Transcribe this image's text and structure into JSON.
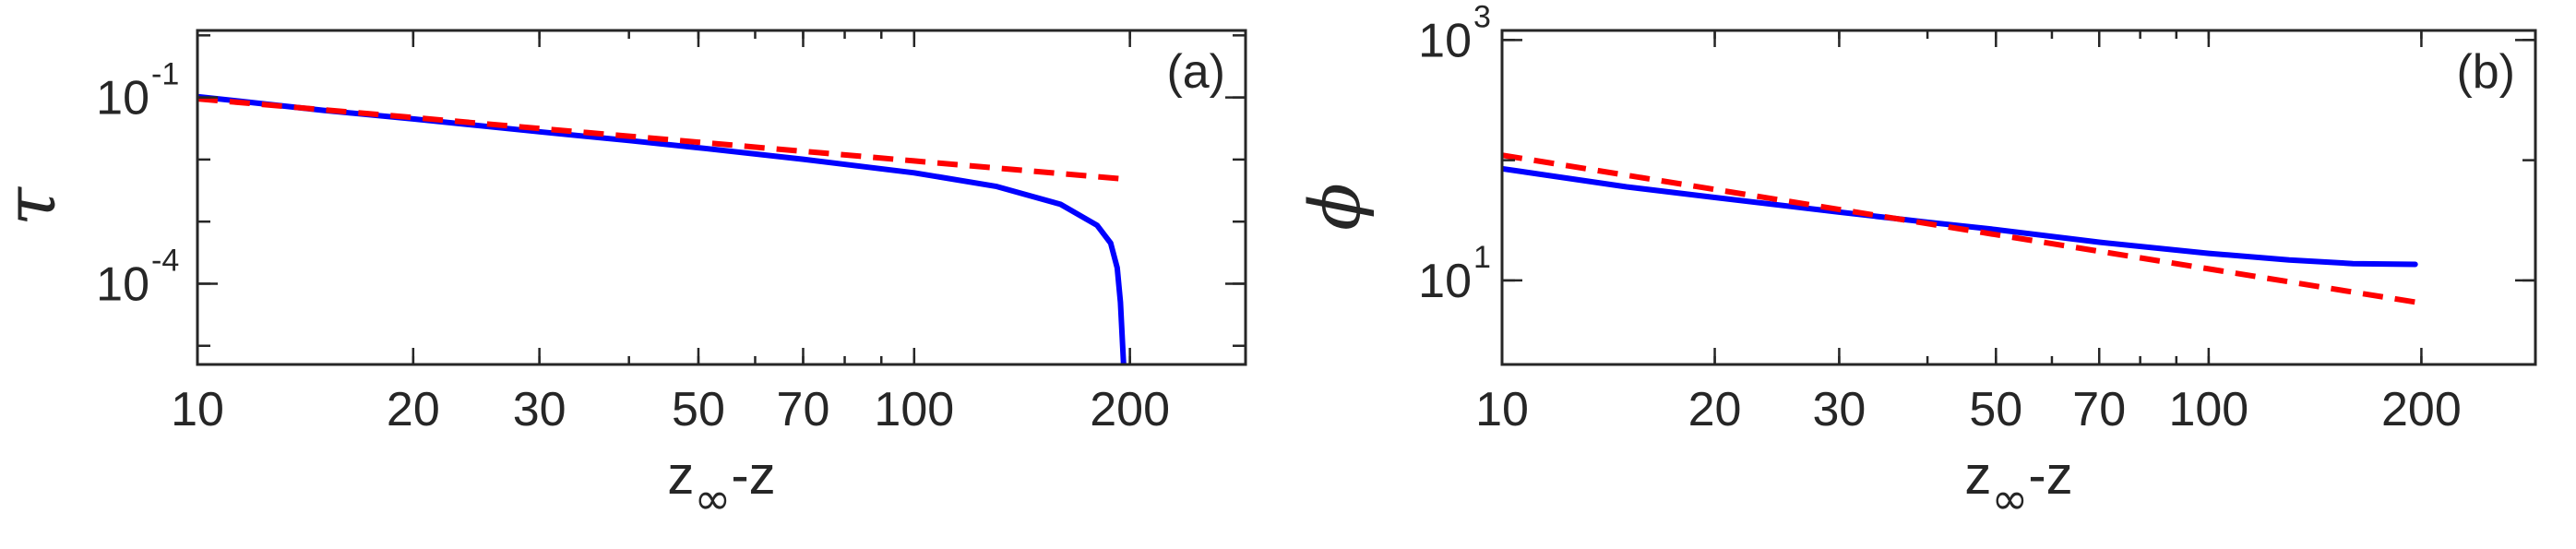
{
  "figure": {
    "background": "#ffffff",
    "axis_color": "#262626",
    "series_colors": {
      "numerical": "#0000ff",
      "asymptotic": "#ff0000"
    }
  },
  "chart_data": [
    {
      "type": "line",
      "panel_label": "(a)",
      "ylabel": "τ",
      "xlabel": {
        "main": "z",
        "sub": "∞",
        "tail": "-z"
      },
      "x_scale": "log",
      "y_scale": "log",
      "xlim": [
        10,
        290
      ],
      "ylim": [
        5e-06,
        1.2
      ],
      "x_ticks": [
        10,
        20,
        30,
        50,
        70,
        100,
        200
      ],
      "x_tick_labels": [
        "10",
        "20",
        "30",
        "50",
        "70",
        "100",
        "200"
      ],
      "y_ticks": [
        0.0001,
        0.1
      ],
      "y_tick_labels": [
        {
          "base": "10",
          "exp": "-4"
        },
        {
          "base": "10",
          "exp": "-1"
        }
      ],
      "grid": false,
      "series": [
        {
          "style": "solid",
          "color": "#0000ff",
          "x": [
            10,
            15,
            20,
            30,
            40,
            50,
            70,
            100,
            130,
            160,
            180,
            188,
            192,
            194,
            196
          ],
          "y": [
            0.103,
            0.062,
            0.045,
            0.028,
            0.0202,
            0.0155,
            0.0101,
            0.0061,
            0.0037,
            0.0019,
            0.00087,
            0.00045,
            0.00018,
            5e-05,
            5e-06
          ]
        },
        {
          "style": "dashed",
          "color": "#ff0000",
          "x": [
            10,
            20,
            50,
            100,
            196
          ],
          "y": [
            0.095,
            0.0475,
            0.019,
            0.0095,
            0.00485
          ]
        }
      ]
    },
    {
      "type": "line",
      "panel_label": "(b)",
      "ylabel": "ϕ",
      "xlabel": {
        "main": "z",
        "sub": "∞",
        "tail": "-z"
      },
      "x_scale": "log",
      "y_scale": "log",
      "xlim": [
        10,
        290
      ],
      "ylim": [
        2,
        1200
      ],
      "x_ticks": [
        10,
        20,
        30,
        50,
        70,
        100,
        200
      ],
      "x_tick_labels": [
        "10",
        "20",
        "30",
        "50",
        "70",
        "100",
        "200"
      ],
      "y_ticks": [
        10,
        1000
      ],
      "y_tick_labels": [
        {
          "base": "10",
          "exp": "1"
        },
        {
          "base": "10",
          "exp": "3"
        }
      ],
      "grid": false,
      "series": [
        {
          "style": "solid",
          "color": "#0000ff",
          "x": [
            10,
            15,
            20,
            30,
            40,
            50,
            70,
            100,
            130,
            160,
            196
          ],
          "y": [
            85,
            60,
            49,
            37,
            30.5,
            26.5,
            20.8,
            16.8,
            14.8,
            13.8,
            13.6
          ]
        },
        {
          "style": "dashed",
          "color": "#ff0000",
          "x": [
            10,
            196
          ],
          "y": [
            110,
            6.6
          ]
        }
      ]
    }
  ]
}
